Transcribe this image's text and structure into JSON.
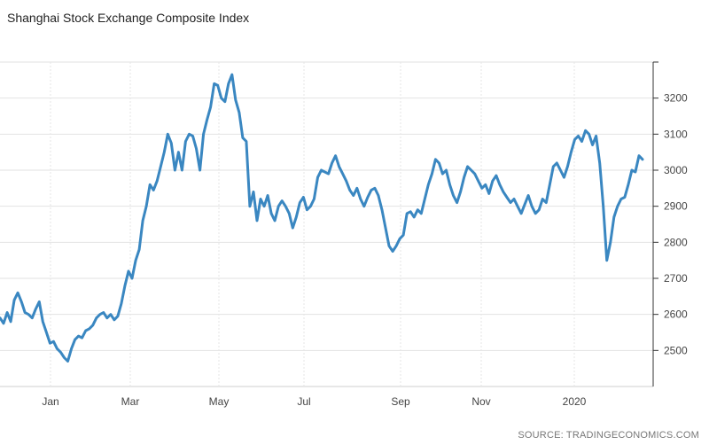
{
  "chart_data": {
    "type": "line",
    "title": "Shanghai Stock Exchange Composite Index",
    "source": "SOURCE: TRADINGECONOMICS.COM",
    "xlabel": "",
    "ylabel": "",
    "ylim": [
      2400,
      3300
    ],
    "yticks": [
      2500,
      2600,
      2700,
      2800,
      2900,
      3000,
      3100,
      3200
    ],
    "grid": true,
    "x_tick_labels": [
      "Jan",
      "Mar",
      "May",
      "Jul",
      "Sep",
      "Nov",
      "2020"
    ],
    "line_color": "#3a87c1",
    "series": [
      {
        "values": [
          2590,
          2575,
          2605,
          2580,
          2640,
          2660,
          2635,
          2605,
          2600,
          2590,
          2615,
          2635,
          2580,
          2550,
          2520,
          2525,
          2505,
          2495,
          2480,
          2470,
          2505,
          2530,
          2540,
          2535,
          2555,
          2560,
          2570,
          2590,
          2600,
          2605,
          2590,
          2600,
          2585,
          2595,
          2630,
          2680,
          2720,
          2700,
          2750,
          2780,
          2860,
          2900,
          2960,
          2945,
          2970,
          3010,
          3050,
          3100,
          3075,
          3000,
          3050,
          3000,
          3080,
          3100,
          3095,
          3060,
          3000,
          3100,
          3140,
          3175,
          3240,
          3235,
          3200,
          3190,
          3240,
          3265,
          3195,
          3160,
          3090,
          3080,
          2900,
          2940,
          2860,
          2920,
          2900,
          2930,
          2880,
          2860,
          2900,
          2915,
          2900,
          2880,
          2840,
          2870,
          2910,
          2925,
          2890,
          2900,
          2920,
          2980,
          3000,
          2995,
          2990,
          3020,
          3040,
          3010,
          2990,
          2970,
          2945,
          2930,
          2950,
          2920,
          2900,
          2925,
          2945,
          2950,
          2930,
          2890,
          2840,
          2790,
          2775,
          2790,
          2810,
          2820,
          2880,
          2885,
          2870,
          2890,
          2880,
          2920,
          2960,
          2990,
          3030,
          3020,
          2990,
          3000,
          2960,
          2930,
          2910,
          2940,
          2980,
          3010,
          3000,
          2990,
          2970,
          2950,
          2960,
          2935,
          2970,
          2985,
          2960,
          2940,
          2925,
          2910,
          2920,
          2900,
          2880,
          2905,
          2930,
          2900,
          2880,
          2890,
          2920,
          2910,
          2960,
          3010,
          3020,
          3000,
          2980,
          3010,
          3050,
          3085,
          3095,
          3080,
          3110,
          3100,
          3070,
          3095,
          3020,
          2900,
          2750,
          2800,
          2870,
          2900,
          2920,
          2925,
          2960,
          3000,
          2995,
          3040,
          3030
        ]
      }
    ]
  }
}
